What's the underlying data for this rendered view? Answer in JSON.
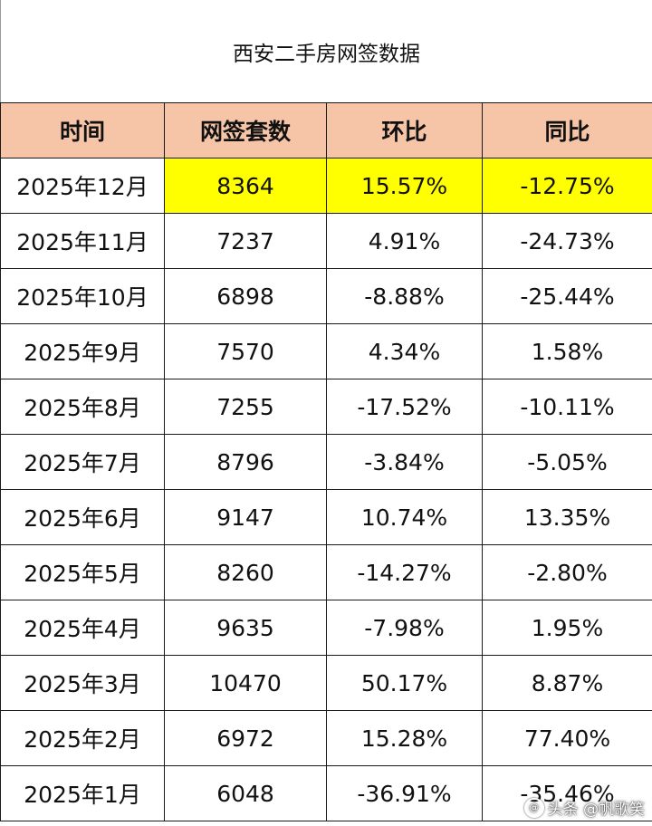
{
  "title": "西安二手房网签数据",
  "columns": [
    "时间",
    "网签套数",
    "环比",
    "同比"
  ],
  "rows": [
    {
      "month": "2025年12月",
      "count": "8364",
      "mom": "15.57%",
      "yoy": "-12.75%",
      "highlight": true
    },
    {
      "month": "2025年11月",
      "count": "7237",
      "mom": "4.91%",
      "yoy": "-24.73%"
    },
    {
      "month": "2025年10月",
      "count": "6898",
      "mom": "-8.88%",
      "yoy": "-25.44%"
    },
    {
      "month": "2025年9月",
      "count": "7570",
      "mom": "4.34%",
      "yoy": "1.58%"
    },
    {
      "month": "2025年8月",
      "count": "7255",
      "mom": "-17.52%",
      "yoy": "-10.11%"
    },
    {
      "month": "2025年7月",
      "count": "8796",
      "mom": "-3.84%",
      "yoy": "-5.05%"
    },
    {
      "month": "2025年6月",
      "count": "9147",
      "mom": "10.74%",
      "yoy": "13.35%"
    },
    {
      "month": "2025年5月",
      "count": "8260",
      "mom": "-14.27%",
      "yoy": "-2.80%"
    },
    {
      "month": "2025年4月",
      "count": "9635",
      "mom": "-7.98%",
      "yoy": "1.95%"
    },
    {
      "month": "2025年3月",
      "count": "10470",
      "mom": "50.17%",
      "yoy": "8.87%"
    },
    {
      "month": "2025年2月",
      "count": "6972",
      "mom": "15.28%",
      "yoy": "77.40%"
    },
    {
      "month": "2025年1月",
      "count": "6048",
      "mom": "-36.91%",
      "yoy": "-35.46%"
    }
  ],
  "watermark": {
    "at": "@",
    "text": "头条 @帆歌笑"
  },
  "colors": {
    "header_bg": "#f6c4a6",
    "highlight": "#ffff00",
    "border": "#1a1a1a"
  }
}
